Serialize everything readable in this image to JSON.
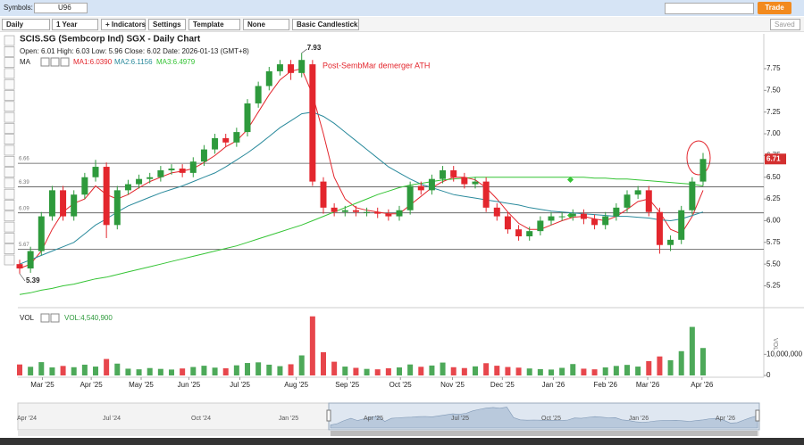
{
  "header": {
    "symbols_label": "Symbols:",
    "symbol": "U96",
    "trade_button": "Trade"
  },
  "toolbar": {
    "interval": "Daily",
    "range": "1 Year",
    "indicators": "+ Indicators",
    "settings": "Settings",
    "template": "Template",
    "overlay": "None",
    "chart_style": "Basic Candlestick",
    "saved": "Saved"
  },
  "chart_data": {
    "type": "candlestick",
    "title": "SCIS.SG (Sembcorp Ind) SGX - Daily Chart",
    "ohlc_info": "Open: 6.01  High: 6.03  Low: 5.96  Close: 6.02  Date: 2026-01-13 (GMT+8)",
    "ma_label": "MA",
    "annotation": "Post-SembMar demerger ATH",
    "up_color": "#2e9a3c",
    "down_color": "#e3262d",
    "categories": [
      null,
      null,
      null,
      null,
      null,
      null,
      null,
      null,
      null,
      null,
      null,
      null,
      null,
      null,
      null,
      null,
      null,
      null,
      null,
      null,
      null,
      null,
      null,
      null,
      null,
      null,
      null,
      null,
      null,
      null,
      null,
      null,
      null,
      null,
      null,
      null,
      null,
      null,
      null,
      null,
      null,
      null,
      null,
      null,
      null,
      null,
      null,
      null,
      null,
      null,
      null,
      null,
      null,
      null,
      null,
      null,
      null,
      null,
      null,
      null,
      null,
      null,
      null,
      null
    ],
    "open": [
      5.5,
      5.45,
      5.65,
      6.05,
      6.35,
      6.05,
      6.3,
      6.5,
      6.62,
      5.95,
      6.35,
      6.42,
      6.48,
      6.5,
      6.58,
      6.6,
      6.55,
      6.68,
      6.82,
      6.95,
      6.9,
      7.02,
      7.35,
      7.55,
      7.72,
      7.8,
      7.7,
      7.8,
      6.45,
      6.15,
      6.1,
      6.12,
      6.1,
      6.1,
      6.08,
      6.05,
      6.12,
      6.4,
      6.35,
      6.48,
      6.58,
      6.5,
      6.42,
      6.45,
      6.15,
      6.05,
      5.9,
      5.82,
      5.88,
      6.0,
      6.05,
      6.05,
      6.08,
      6.02,
      5.95,
      6.05,
      6.15,
      6.3,
      6.35,
      6.1,
      5.72,
      5.78,
      6.12,
      6.45
    ],
    "high": [
      5.55,
      5.7,
      6.1,
      6.4,
      6.4,
      6.35,
      6.55,
      6.7,
      6.67,
      6.4,
      6.47,
      6.53,
      6.55,
      6.63,
      6.65,
      6.65,
      6.73,
      6.87,
      7.0,
      7.0,
      7.07,
      7.4,
      7.6,
      7.77,
      7.85,
      7.85,
      7.93,
      7.85,
      6.5,
      6.2,
      6.17,
      6.17,
      6.15,
      6.15,
      6.13,
      6.17,
      6.45,
      6.45,
      6.53,
      6.63,
      6.63,
      6.55,
      6.5,
      6.5,
      6.2,
      6.1,
      5.95,
      5.93,
      6.05,
      6.1,
      6.1,
      6.13,
      6.13,
      6.07,
      6.1,
      6.2,
      6.35,
      6.4,
      6.4,
      6.15,
      5.83,
      6.17,
      6.5,
      6.78
    ],
    "low": [
      5.39,
      5.4,
      5.6,
      6.0,
      6.0,
      6.0,
      6.25,
      6.45,
      5.8,
      5.9,
      6.3,
      6.37,
      6.43,
      6.45,
      6.53,
      6.5,
      6.5,
      6.63,
      6.77,
      6.85,
      6.85,
      6.97,
      7.3,
      7.5,
      7.67,
      7.62,
      7.65,
      6.4,
      6.08,
      6.05,
      6.05,
      6.05,
      6.05,
      6.03,
      6.0,
      6.0,
      6.07,
      6.3,
      6.3,
      6.43,
      6.45,
      6.37,
      6.37,
      6.1,
      6.0,
      5.85,
      5.77,
      5.77,
      5.83,
      5.95,
      6.0,
      6.0,
      5.96,
      5.9,
      5.9,
      6.0,
      6.1,
      6.25,
      6.05,
      5.62,
      5.65,
      5.73,
      6.07,
      6.4
    ],
    "close": [
      5.45,
      5.65,
      6.05,
      6.35,
      6.05,
      6.3,
      6.5,
      6.62,
      5.95,
      6.35,
      6.42,
      6.48,
      6.5,
      6.58,
      6.6,
      6.55,
      6.68,
      6.82,
      6.95,
      6.9,
      7.02,
      7.35,
      7.55,
      7.72,
      7.8,
      7.7,
      7.85,
      6.45,
      6.15,
      6.1,
      6.12,
      6.1,
      6.1,
      6.08,
      6.05,
      6.12,
      6.4,
      6.35,
      6.48,
      6.58,
      6.5,
      6.42,
      6.45,
      6.15,
      6.05,
      5.9,
      5.82,
      5.88,
      6.0,
      6.05,
      6.05,
      6.08,
      6.02,
      5.95,
      6.05,
      6.15,
      6.3,
      6.35,
      6.1,
      5.72,
      5.78,
      6.12,
      6.45,
      6.71
    ],
    "series": [
      {
        "name": "MA1:6.0390",
        "color": "#e3262d",
        "values": [
          5.45,
          5.5,
          5.65,
          5.9,
          6.1,
          6.2,
          6.25,
          6.4,
          6.3,
          6.25,
          6.3,
          6.38,
          6.45,
          6.5,
          6.55,
          6.57,
          6.6,
          6.67,
          6.75,
          6.85,
          6.92,
          7.05,
          7.25,
          7.45,
          7.62,
          7.72,
          7.75,
          7.45,
          7.0,
          6.5,
          6.25,
          6.15,
          6.12,
          6.1,
          6.08,
          6.08,
          6.18,
          6.28,
          6.38,
          6.45,
          6.5,
          6.5,
          6.47,
          6.38,
          6.25,
          6.1,
          5.97,
          5.9,
          5.9,
          5.95,
          6.0,
          6.04,
          6.05,
          6.02,
          6.0,
          6.05,
          6.13,
          6.22,
          6.25,
          6.1,
          5.9,
          5.85,
          6.05,
          6.35
        ]
      },
      {
        "name": "MA2:6.1156",
        "color": "#2a8a9c",
        "values": [
          5.5,
          5.55,
          5.6,
          5.65,
          5.7,
          5.75,
          5.85,
          5.95,
          6.02,
          6.1,
          6.17,
          6.22,
          6.27,
          6.32,
          6.36,
          6.4,
          6.45,
          6.5,
          6.55,
          6.62,
          6.7,
          6.78,
          6.87,
          6.97,
          7.07,
          7.15,
          7.23,
          7.25,
          7.2,
          7.12,
          7.02,
          6.92,
          6.82,
          6.72,
          6.62,
          6.55,
          6.48,
          6.42,
          6.38,
          6.34,
          6.3,
          6.28,
          6.26,
          6.24,
          6.22,
          6.2,
          6.18,
          6.15,
          6.13,
          6.11,
          6.1,
          6.09,
          6.08,
          6.07,
          6.06,
          6.05,
          6.05,
          6.04,
          6.03,
          6.01,
          6.0,
          6.02,
          6.06,
          6.1
        ]
      },
      {
        "name": "MA3:6.4979",
        "color": "#35c435",
        "values": [
          5.15,
          5.17,
          5.2,
          5.22,
          5.25,
          5.27,
          5.3,
          5.33,
          5.35,
          5.38,
          5.41,
          5.44,
          5.47,
          5.5,
          5.53,
          5.56,
          5.59,
          5.62,
          5.65,
          5.68,
          5.71,
          5.75,
          5.79,
          5.83,
          5.87,
          5.91,
          5.95,
          6.0,
          6.05,
          6.1,
          6.15,
          6.2,
          6.25,
          6.3,
          6.34,
          6.38,
          6.41,
          6.43,
          6.45,
          6.47,
          6.48,
          6.49,
          6.5,
          6.5,
          6.5,
          6.5,
          6.5,
          6.5,
          6.5,
          6.5,
          6.5,
          6.5,
          6.5,
          6.49,
          6.49,
          6.48,
          6.48,
          6.47,
          6.46,
          6.45,
          6.44,
          6.43,
          6.42,
          6.4
        ]
      }
    ],
    "levels": [
      6.66,
      6.39,
      6.09,
      5.67
    ],
    "ylim": [
      5.05,
      8.15
    ],
    "yticks": [
      5.25,
      {
        "value": 5.5,
        "label": "5.50"
      },
      5.75,
      {
        "value": 6,
        "label": "6.00"
      },
      6.25,
      {
        "value": 6.5,
        "label": "6.50"
      },
      6.75,
      {
        "value": 7,
        "label": "7.00"
      },
      7.25,
      {
        "value": 7.5,
        "label": "7.50"
      },
      7.75
    ],
    "xticks": [
      {
        "value": 2.1,
        "label": "Mar '25"
      },
      {
        "value": 6.6,
        "label": "Apr '25"
      },
      {
        "value": 11.2,
        "label": "May '25"
      },
      {
        "value": 15.6,
        "label": "Jun '25"
      },
      {
        "value": 20.3,
        "label": "Jul '25"
      },
      {
        "value": 25.5,
        "label": "Aug '25"
      },
      {
        "value": 30.2,
        "label": "Sep '25"
      },
      {
        "value": 35.1,
        "label": "Oct '25"
      },
      {
        "value": 39.9,
        "label": "Nov '25"
      },
      {
        "value": 44.5,
        "label": "Dec '25"
      },
      {
        "value": 49.2,
        "label": "Jan '26"
      },
      {
        "value": 54,
        "label": "Feb '26"
      },
      {
        "value": 57.9,
        "label": "Mar '26"
      },
      {
        "value": 62.9,
        "label": "Apr '26"
      }
    ],
    "volume": {
      "label": "VOL",
      "legend": "VOL:4,540,900",
      "axis_title": "VOL",
      "values": [
        5200000,
        4100000,
        6300000,
        3800000,
        4500000,
        3900000,
        5100000,
        4200000,
        7800000,
        5600000,
        3200000,
        2900000,
        3500000,
        3100000,
        2800000,
        3300000,
        4000000,
        4600000,
        3700000,
        3400000,
        4800000,
        5900000,
        6200000,
        5100000,
        4400000,
        5300000,
        9500000,
        28000000,
        11000000,
        6500000,
        4200000,
        3600000,
        3100000,
        2900000,
        3400000,
        3800000,
        5200000,
        4100000,
        4700000,
        6100000,
        3900000,
        3500000,
        4300000,
        5800000,
        4600000,
        4000000,
        3700000,
        3300000,
        3000000,
        2800000,
        3600000,
        5400000,
        3200000,
        2900000,
        3800000,
        4500000,
        5000000,
        4200000,
        6800000,
        9000000,
        7200000,
        11500000,
        23000000,
        13000000
      ],
      "ylim": [
        0,
        30000000
      ],
      "yticks": [
        0,
        {
          "value": 10000000,
          "label": "10,000,000"
        }
      ]
    },
    "navigator_labels": [
      "Apr '24",
      "Jul '24",
      "Oct '24",
      "Jan '25",
      "Apr '25",
      "Jul '25",
      "Oct '25",
      "Jan '26",
      "Apr '26"
    ]
  }
}
